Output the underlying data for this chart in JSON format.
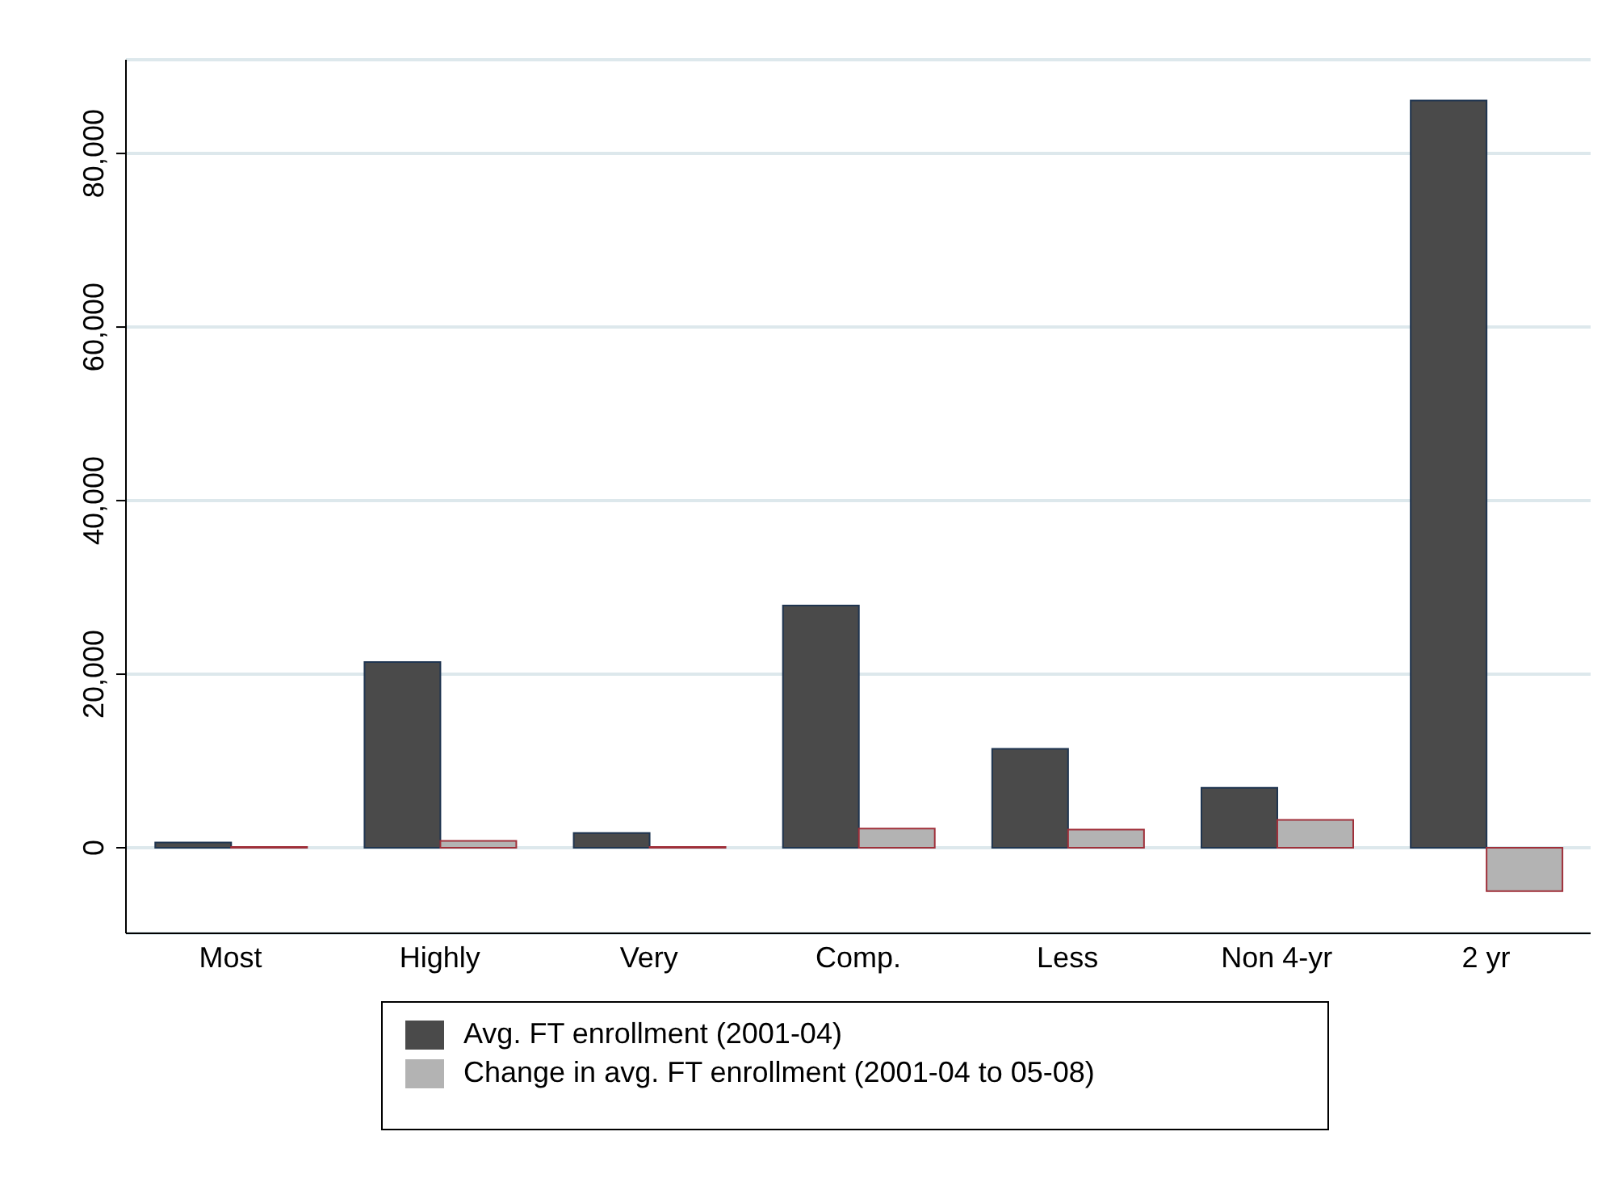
{
  "chart_data": {
    "type": "bar",
    "categories": [
      "Most",
      "Highly",
      "Very",
      "Comp.",
      "Less",
      "Non 4-yr",
      "2 yr"
    ],
    "series": [
      {
        "name": "Avg. FT enrollment (2001-04)",
        "color": "#4a4a4a",
        "values": [
          600,
          21400,
          1700,
          27900,
          11400,
          6900,
          86100
        ]
      },
      {
        "name": "Change in avg. FT enrollment (2001-04 to 05-08)",
        "color": "#b3b3b3",
        "values": [
          100,
          800,
          100,
          2200,
          2100,
          3200,
          -5000
        ]
      }
    ],
    "ylim": [
      -9860,
      90800
    ],
    "yticks": [
      0,
      {
        "value": 20000,
        "label": "20,000"
      },
      {
        "value": 40000,
        "label": "40,000"
      },
      {
        "value": 60000,
        "label": "60,000"
      },
      {
        "value": 80000,
        "label": "80,000"
      }
    ],
    "grid": "y",
    "legend": "bottom"
  }
}
